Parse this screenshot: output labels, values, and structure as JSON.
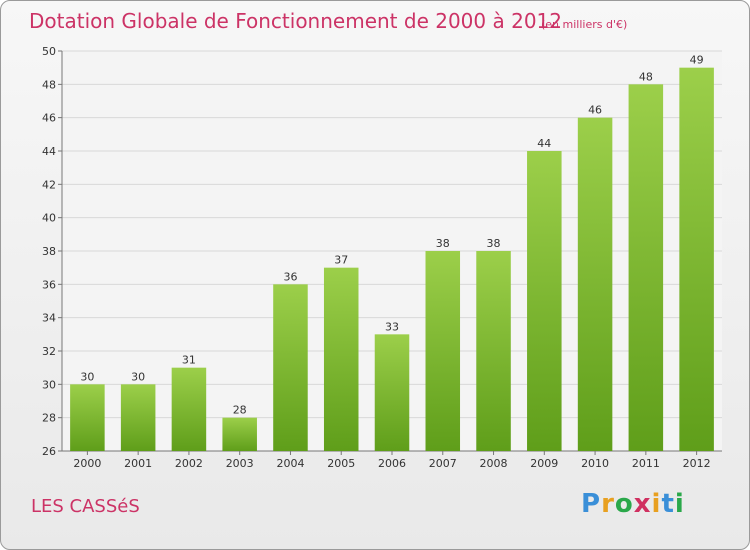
{
  "title": "Dotation Globale de Fonctionnement de 2000 à 2012",
  "subtitle": "(en milliers d'€)",
  "commune": "LES CASSéS",
  "brand": {
    "letters": [
      "P",
      "r",
      "o",
      "x",
      "i",
      "t",
      "i"
    ],
    "colors": [
      "#3a8fd8",
      "#e8a020",
      "#2aa84a",
      "#d03060",
      "#e8a020",
      "#3a8fd8",
      "#2aa84a"
    ]
  },
  "colors": {
    "bar_top": "#9ccf4a",
    "bar_bottom": "#5f9e1a",
    "text_accent": "#cc3366"
  },
  "chart_data": {
    "type": "bar",
    "title": "Dotation Globale de Fonctionnement de 2000 à 2012",
    "subtitle": "(en milliers d'€)",
    "categories": [
      "2000",
      "2001",
      "2002",
      "2003",
      "2004",
      "2005",
      "2006",
      "2007",
      "2008",
      "2009",
      "2010",
      "2011",
      "2012"
    ],
    "values": [
      30,
      30,
      31,
      28,
      36,
      37,
      33,
      38,
      38,
      44,
      46,
      48,
      49
    ],
    "ylim": [
      26,
      50
    ],
    "yticks": [
      26,
      28,
      30,
      32,
      34,
      36,
      38,
      40,
      42,
      44,
      46,
      48,
      50
    ],
    "grid": true,
    "legend": "none"
  }
}
